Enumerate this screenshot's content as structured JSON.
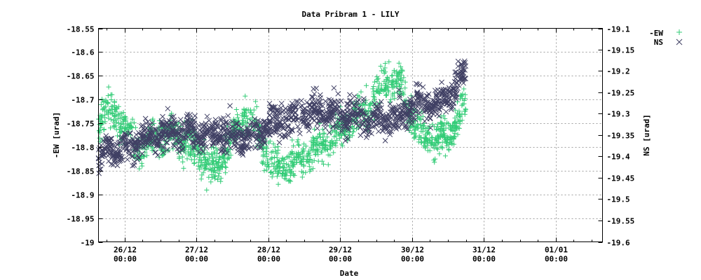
{
  "chart_data": {
    "type": "scatter",
    "title": "Data Pribram 1 - LILY",
    "xlabel": "Date",
    "ylabel": "-EW [urad]",
    "y2label": "NS [urad]",
    "x_unit": "hours since 26/12 00:00",
    "xlim": [
      -8.7,
      159.6
    ],
    "ylim": [
      -19,
      -18.55
    ],
    "y2lim": [
      -19.6,
      -19.1
    ],
    "grid": true,
    "legend_position": "top-right outside",
    "xticks": [
      {
        "t": 0,
        "line1": "26/12",
        "line2": "00:00"
      },
      {
        "t": 24,
        "line1": "27/12",
        "line2": "00:00"
      },
      {
        "t": 48,
        "line1": "28/12",
        "line2": "00:00"
      },
      {
        "t": 72,
        "line1": "29/12",
        "line2": "00:00"
      },
      {
        "t": 96,
        "line1": "30/12",
        "line2": "00:00"
      },
      {
        "t": 120,
        "line1": "31/12",
        "line2": "00:00"
      },
      {
        "t": 144,
        "line1": "01/01",
        "line2": "00:00"
      }
    ],
    "yticks": [
      "-18.55",
      "-18.6",
      "-18.65",
      "-18.7",
      "-18.75",
      "-18.8",
      "-18.85",
      "-18.9",
      "-18.95",
      "-19"
    ],
    "y2ticks": [
      "-19.1",
      "-19.15",
      "-19.2",
      "-19.25",
      "-19.3",
      "-19.35",
      "-19.4",
      "-19.45",
      "-19.5",
      "-19.55",
      "-19.6"
    ],
    "series": [
      {
        "name": "-EW",
        "axis": "y1",
        "marker": "plus",
        "color": "#33cc77",
        "spread": 0.035,
        "t": [
          -8,
          -4,
          0,
          4,
          8,
          12,
          16,
          20,
          24,
          28,
          32,
          36,
          40,
          44,
          48,
          52,
          56,
          60,
          64,
          68,
          72,
          76,
          80,
          84,
          88,
          92,
          96,
          100,
          104,
          108,
          112,
          114
        ],
        "values": [
          -18.739,
          -18.727,
          -18.754,
          -18.801,
          -18.793,
          -18.783,
          -18.78,
          -18.786,
          -18.801,
          -18.845,
          -18.833,
          -18.779,
          -18.727,
          -18.764,
          -18.827,
          -18.845,
          -18.833,
          -18.823,
          -18.804,
          -18.786,
          -18.771,
          -18.742,
          -18.727,
          -18.683,
          -18.656,
          -18.665,
          -18.734,
          -18.779,
          -18.779,
          -18.779,
          -18.734,
          -18.712
        ]
      },
      {
        "name": "NS",
        "axis": "y2",
        "marker": "cross",
        "color": "#404064",
        "spread": 0.035,
        "t": [
          -8,
          -4,
          0,
          4,
          8,
          12,
          16,
          20,
          24,
          28,
          32,
          36,
          40,
          44,
          48,
          52,
          56,
          60,
          64,
          68,
          72,
          76,
          80,
          84,
          88,
          92,
          96,
          100,
          104,
          108,
          112,
          114
        ],
        "values": [
          -19.395,
          -19.382,
          -19.387,
          -19.37,
          -19.359,
          -19.349,
          -19.343,
          -19.339,
          -19.346,
          -19.354,
          -19.343,
          -19.349,
          -19.354,
          -19.343,
          -19.33,
          -19.321,
          -19.313,
          -19.3,
          -19.29,
          -19.297,
          -19.305,
          -19.305,
          -19.313,
          -19.316,
          -19.313,
          -19.305,
          -19.284,
          -19.272,
          -19.28,
          -19.256,
          -19.223,
          -19.198
        ]
      }
    ]
  }
}
